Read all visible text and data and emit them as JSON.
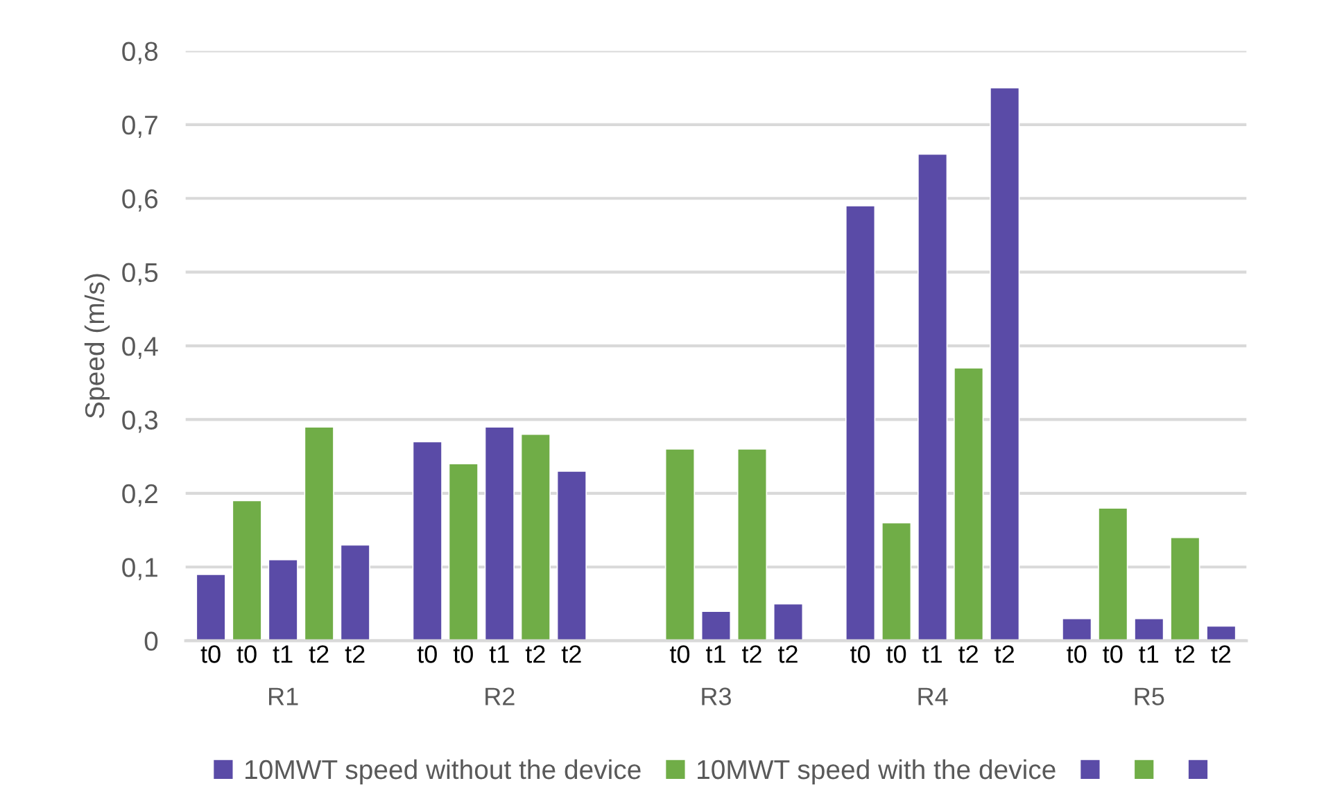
{
  "chart_data": {
    "type": "bar",
    "ylabel": "Speed (m/s)",
    "categories": [
      "t0",
      "t0",
      "t1",
      "t2",
      "t2",
      null,
      "t0",
      "t0",
      "t1",
      "t2",
      "t2",
      null,
      null,
      "t0",
      "t1",
      "t2",
      "t2",
      null,
      "t0",
      "t0",
      "t1",
      "t2",
      "t2",
      null,
      "t0",
      "t0",
      "t1",
      "t2",
      "t2"
    ],
    "series": [
      {
        "name": "10MWT speed without the device",
        "color": "#5a4ba7",
        "values": [
          0.09,
          null,
          null,
          null,
          null,
          null,
          0.27,
          null,
          null,
          null,
          null,
          null,
          null,
          null,
          null,
          null,
          null,
          null,
          0.59,
          null,
          null,
          null,
          null,
          null,
          0.03,
          null,
          null,
          null,
          null
        ]
      },
      {
        "name": "10MWT speed with the device",
        "color": "#70ad47",
        "values": [
          null,
          0.19,
          null,
          null,
          null,
          null,
          null,
          0.24,
          null,
          null,
          null,
          null,
          null,
          0.26,
          null,
          null,
          null,
          null,
          null,
          0.16,
          null,
          null,
          null,
          null,
          null,
          0.18,
          null,
          null,
          null
        ]
      },
      {
        "color": "#5a4ba7",
        "values": [
          null,
          null,
          0.11,
          null,
          null,
          null,
          null,
          null,
          0.29,
          null,
          null,
          null,
          null,
          null,
          0.04,
          null,
          null,
          null,
          null,
          null,
          0.66,
          null,
          null,
          null,
          null,
          null,
          0.03,
          null,
          null
        ]
      },
      {
        "color": "#70ad47",
        "values": [
          null,
          null,
          null,
          0.29,
          null,
          null,
          null,
          null,
          null,
          0.28,
          null,
          null,
          null,
          null,
          null,
          0.26,
          null,
          null,
          null,
          null,
          null,
          0.37,
          null,
          null,
          null,
          null,
          null,
          0.14,
          null
        ]
      },
      {
        "color": "#5a4ba7",
        "values": [
          null,
          null,
          null,
          null,
          0.13,
          null,
          null,
          null,
          null,
          null,
          0.23,
          null,
          null,
          null,
          null,
          null,
          0.05,
          null,
          null,
          null,
          null,
          null,
          0.75,
          null,
          null,
          null,
          null,
          null,
          0.02
        ]
      }
    ],
    "annotations": [
      "R1",
      "R2",
      "R3",
      "R4",
      "R5"
    ],
    "ylim": [
      0,
      0.8
    ],
    "yticks": [
      0,
      {
        "value": 0.1,
        "label": "0,1"
      },
      {
        "value": 0.2,
        "label": "0,2"
      },
      {
        "value": 0.3,
        "label": "0,3"
      },
      {
        "value": 0.4,
        "label": "0,4"
      },
      {
        "value": 0.5,
        "label": "0,5"
      },
      {
        "value": 0.6,
        "label": "0,6"
      },
      {
        "value": 0.7,
        "label": "0,7"
      },
      {
        "value": 0.8,
        "label": "0,8"
      }
    ],
    "grid": "y",
    "legend": "bottom"
  }
}
